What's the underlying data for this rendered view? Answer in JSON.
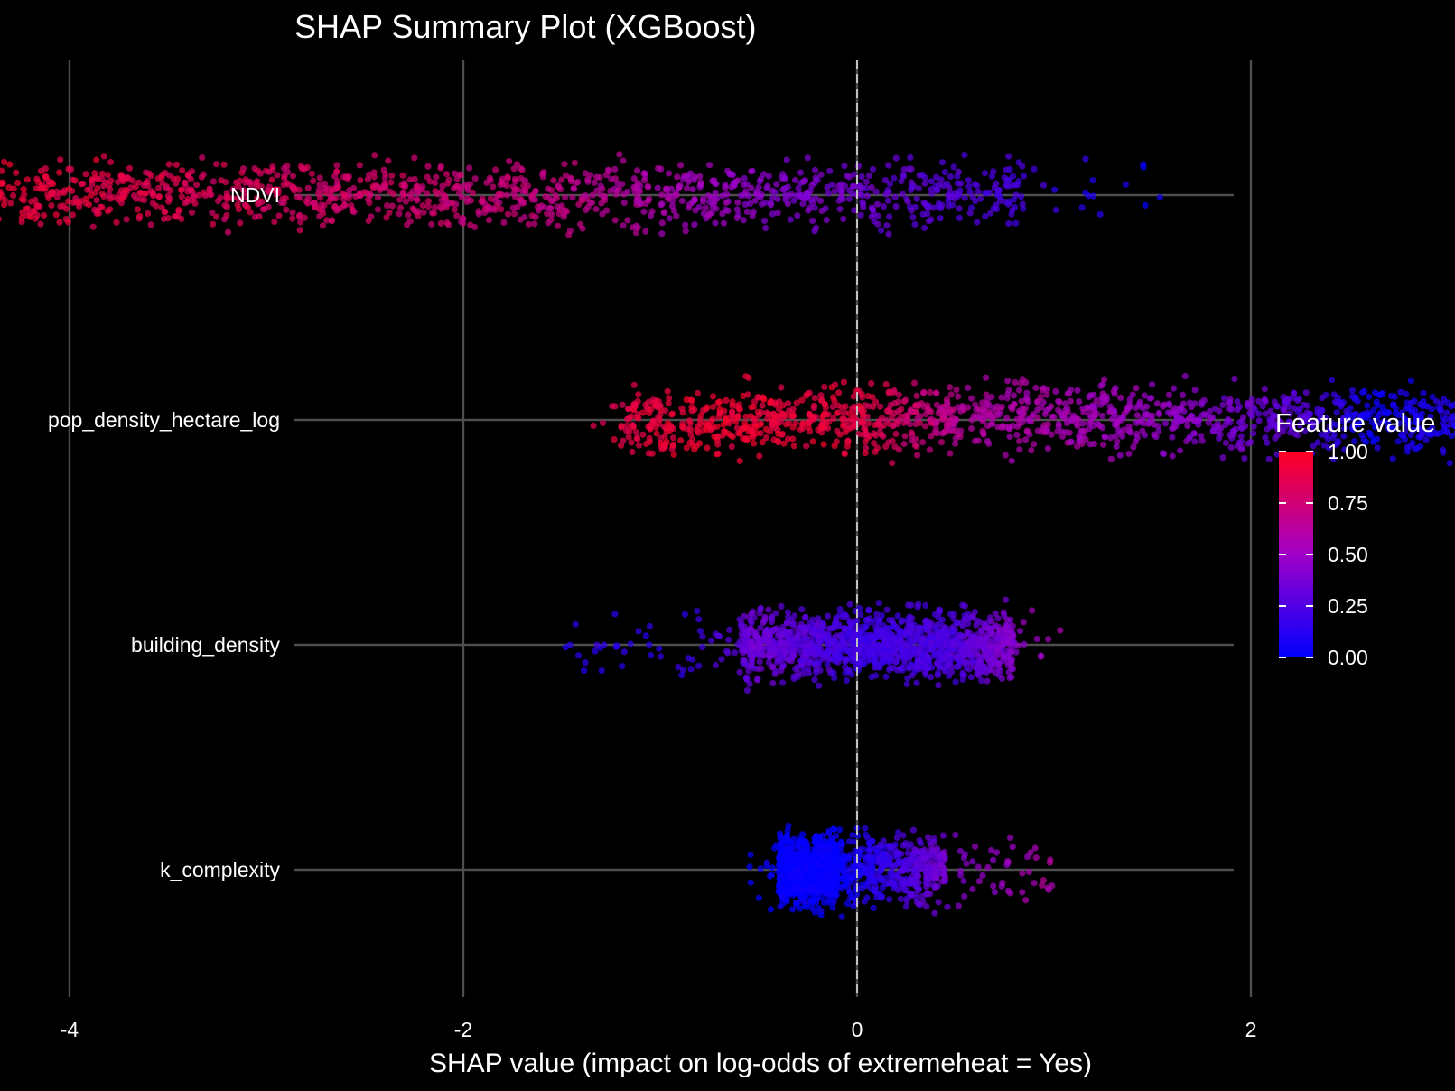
{
  "chart_data": {
    "type": "scatter",
    "subtype": "shap-beeswarm",
    "title": "SHAP Summary Plot (XGBoost)",
    "xlabel": "SHAP value (impact on log-odds of extremeheat = Yes)",
    "ylabel": "",
    "xlim": [
      -5.8,
      3.9
    ],
    "x_ticks": [
      -4,
      -2,
      0,
      2
    ],
    "x_tick_labels": [
      "-4",
      "-2",
      "0",
      "2"
    ],
    "grid": true,
    "zero_line": {
      "x": 0,
      "style": "dashed"
    },
    "features": [
      {
        "name": "NDVI",
        "shap_min": -5.2,
        "shap_max": 1.55,
        "dense_range": [
          -5.1,
          0.85
        ],
        "color_profile": [
          [
            -5.2,
            1.0
          ],
          [
            -3.5,
            0.85
          ],
          [
            -1.5,
            0.7
          ],
          [
            -0.5,
            0.45
          ],
          [
            0.3,
            0.3
          ],
          [
            0.9,
            0.2
          ],
          [
            1.55,
            0.0
          ]
        ]
      },
      {
        "name": "pop_density_hectare_log",
        "shap_min": -1.35,
        "shap_max": 3.4,
        "dense_range": [
          -1.2,
          3.3
        ],
        "color_profile": [
          [
            -1.35,
            0.85
          ],
          [
            -0.8,
            0.95
          ],
          [
            0.0,
            0.9
          ],
          [
            0.6,
            0.6
          ],
          [
            1.5,
            0.5
          ],
          [
            2.2,
            0.3
          ],
          [
            2.6,
            0.05
          ],
          [
            3.4,
            0.15
          ]
        ]
      },
      {
        "name": "building_density",
        "shap_min": -1.5,
        "shap_max": 1.05,
        "dense_range": [
          -0.6,
          0.8
        ],
        "color_profile": [
          [
            -1.5,
            0.1
          ],
          [
            -0.9,
            0.15
          ],
          [
            -0.5,
            0.35
          ],
          [
            0.0,
            0.2
          ],
          [
            0.5,
            0.25
          ],
          [
            1.05,
            0.6
          ]
        ]
      },
      {
        "name": "k_complexity",
        "shap_min": -0.55,
        "shap_max": 1.0,
        "dense_range": [
          -0.4,
          0.45
        ],
        "color_profile": [
          [
            -0.55,
            0.0
          ],
          [
            -0.1,
            0.02
          ],
          [
            0.2,
            0.2
          ],
          [
            0.5,
            0.4
          ],
          [
            1.0,
            0.6
          ]
        ]
      }
    ],
    "legend": {
      "title": "Feature value",
      "placement": "right",
      "type": "colorbar",
      "low_color": "#0000ff",
      "mid_color": "#a000c8",
      "high_color": "#ff0022",
      "ticks": [
        1.0,
        0.75,
        0.5,
        0.25,
        0.0
      ],
      "tick_labels": [
        "1.00",
        "0.75",
        "0.50",
        "0.25",
        "0.00"
      ]
    }
  }
}
